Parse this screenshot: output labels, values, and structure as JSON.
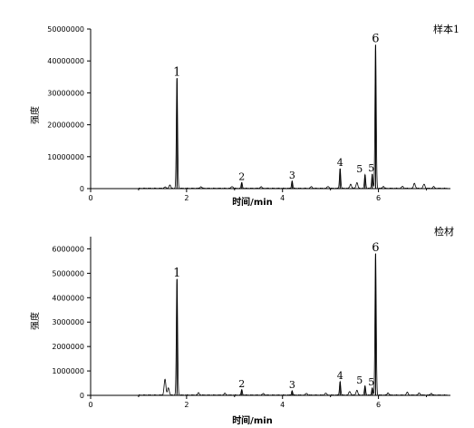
{
  "chart_data": [
    {
      "type": "line",
      "title": "样本1",
      "xlabel": "时间/min",
      "ylabel": "强度",
      "xlim": [
        0,
        7.5
      ],
      "ylim": [
        0,
        50000000
      ],
      "xticks": [
        0,
        2,
        4,
        6
      ],
      "yticks": [
        0,
        10000000,
        20000000,
        30000000,
        40000000,
        50000000
      ],
      "ytick_labels": [
        "0",
        "10000000",
        "20000000",
        "30000000",
        "40000000",
        "50000000"
      ],
      "peaks": [
        {
          "label": "1",
          "time": 1.8,
          "intensity": 34500000
        },
        {
          "label": "2",
          "time": 3.15,
          "intensity": 1800000
        },
        {
          "label": "3",
          "time": 4.2,
          "intensity": 2300000
        },
        {
          "label": "4",
          "time": 5.2,
          "intensity": 6200000
        },
        {
          "label": "5",
          "time": 5.72,
          "intensity": 4300000
        },
        {
          "label": "5",
          "time": 5.87,
          "intensity": 4500000
        },
        {
          "label": "6",
          "time": 5.94,
          "intensity": 45000000
        }
      ],
      "minor_peaks": [
        {
          "time": 1.55,
          "intensity": 400000
        },
        {
          "time": 1.65,
          "intensity": 1000000
        },
        {
          "time": 2.3,
          "intensity": 500000
        },
        {
          "time": 2.95,
          "intensity": 600000
        },
        {
          "time": 3.55,
          "intensity": 500000
        },
        {
          "time": 4.6,
          "intensity": 500000
        },
        {
          "time": 4.95,
          "intensity": 600000
        },
        {
          "time": 5.42,
          "intensity": 1300000
        },
        {
          "time": 5.55,
          "intensity": 1800000
        },
        {
          "time": 6.1,
          "intensity": 600000
        },
        {
          "time": 6.5,
          "intensity": 600000
        },
        {
          "time": 6.75,
          "intensity": 1600000
        },
        {
          "time": 6.95,
          "intensity": 1300000
        },
        {
          "time": 7.15,
          "intensity": 500000
        }
      ]
    },
    {
      "type": "line",
      "title": "检材",
      "xlabel": "时间/min",
      "ylabel": "强度",
      "xlim": [
        0,
        7.5
      ],
      "ylim": [
        0,
        6500000
      ],
      "xticks": [
        0,
        2,
        4,
        6
      ],
      "yticks": [
        0,
        1000000,
        2000000,
        3000000,
        4000000,
        5000000,
        6000000
      ],
      "ytick_labels": [
        "0",
        "1000000",
        "2000000",
        "3000000",
        "4000000",
        "5000000",
        "6000000"
      ],
      "peaks": [
        {
          "label": "1",
          "time": 1.8,
          "intensity": 4750000
        },
        {
          "label": "2",
          "time": 3.15,
          "intensity": 220000
        },
        {
          "label": "3",
          "time": 4.2,
          "intensity": 180000
        },
        {
          "label": "4",
          "time": 5.2,
          "intensity": 550000
        },
        {
          "label": "5",
          "time": 5.72,
          "intensity": 380000
        },
        {
          "label": "5",
          "time": 5.87,
          "intensity": 300000
        },
        {
          "label": "6",
          "time": 5.94,
          "intensity": 5800000
        }
      ],
      "minor_peaks": [
        {
          "time": 1.55,
          "intensity": 650000
        },
        {
          "time": 1.62,
          "intensity": 300000
        },
        {
          "time": 2.25,
          "intensity": 90000
        },
        {
          "time": 2.8,
          "intensity": 70000
        },
        {
          "time": 3.6,
          "intensity": 60000
        },
        {
          "time": 4.5,
          "intensity": 70000
        },
        {
          "time": 4.9,
          "intensity": 80000
        },
        {
          "time": 5.4,
          "intensity": 150000
        },
        {
          "time": 5.55,
          "intensity": 200000
        },
        {
          "time": 6.2,
          "intensity": 90000
        },
        {
          "time": 6.6,
          "intensity": 110000
        },
        {
          "time": 6.85,
          "intensity": 90000
        },
        {
          "time": 7.1,
          "intensity": 70000
        }
      ]
    }
  ]
}
